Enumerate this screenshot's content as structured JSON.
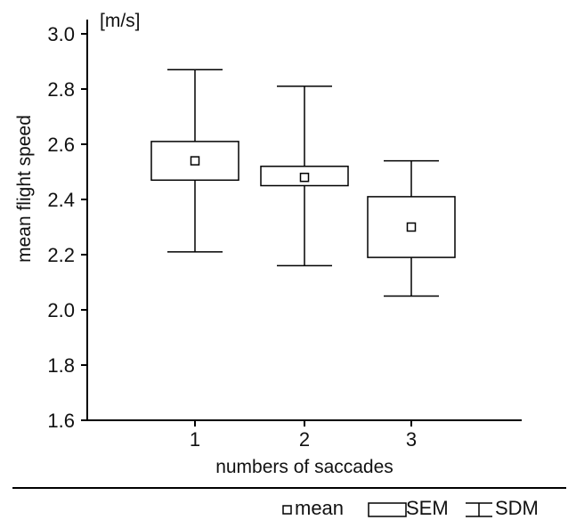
{
  "chart_data": {
    "type": "box",
    "unit_label": "[m/s]",
    "ylabel": "mean flight speed",
    "xlabel": "numbers of saccades",
    "categories": [
      "1",
      "2",
      "3"
    ],
    "ylim": [
      1.6,
      3.05
    ],
    "yticks": [
      "1.6",
      "1.8",
      "2.0",
      "2.2",
      "2.4",
      "2.6",
      "2.8",
      "3.0"
    ],
    "boxes": [
      {
        "category": "1",
        "mean": 2.54,
        "sem_low": 2.47,
        "sem_high": 2.61,
        "sd_low": 2.21,
        "sd_high": 2.87
      },
      {
        "category": "2",
        "mean": 2.48,
        "sem_low": 2.45,
        "sem_high": 2.52,
        "sd_low": 2.16,
        "sd_high": 2.81
      },
      {
        "category": "3",
        "mean": 2.3,
        "sem_low": 2.19,
        "sem_high": 2.41,
        "sd_low": 2.05,
        "sd_high": 2.54
      }
    ],
    "grid": false,
    "legend": {
      "position": "bottom-right",
      "items": [
        {
          "symbol": "mean-marker",
          "label": "mean"
        },
        {
          "symbol": "sem-box",
          "label": "SEM"
        },
        {
          "symbol": "sdm-whisker",
          "label": "SDM"
        }
      ]
    }
  }
}
